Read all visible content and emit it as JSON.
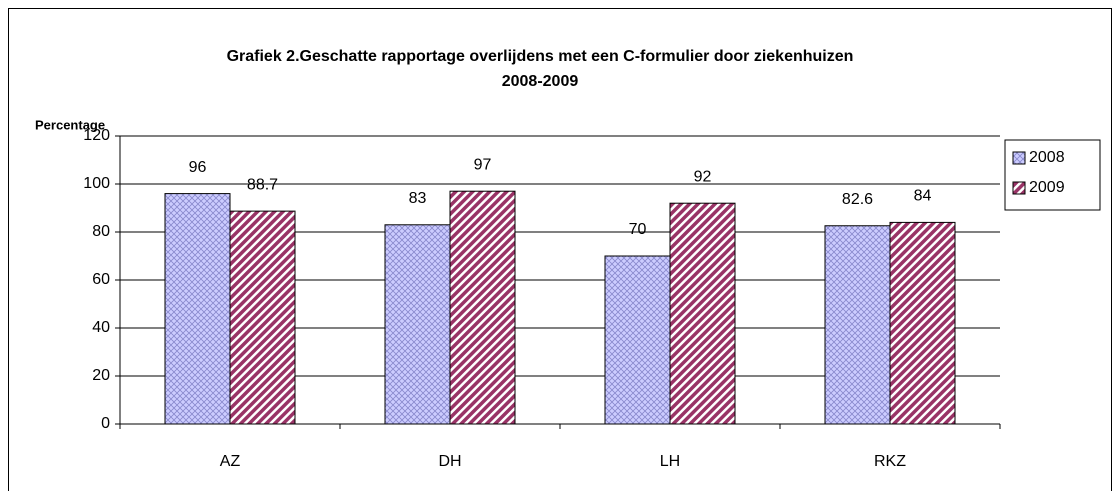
{
  "chart_data": {
    "type": "bar",
    "title": [
      "Grafiek 2.Geschatte rapportage overlijdens met een C-formulier door ziekenhuizen",
      "2008-2009"
    ],
    "ylabel": "Percentage",
    "categories": [
      "AZ",
      "DH",
      "LH",
      "RKZ"
    ],
    "series": [
      {
        "name": "2008",
        "color": "#ccccff",
        "values": [
          96,
          83,
          70,
          82.6
        ]
      },
      {
        "name": "2009",
        "color": "#993366",
        "values": [
          88.7,
          97,
          92,
          84
        ]
      }
    ],
    "ylim": [
      0,
      120
    ],
    "yticks": [
      0,
      20,
      40,
      60,
      80,
      100,
      120
    ],
    "grid": true,
    "legend": "right"
  }
}
